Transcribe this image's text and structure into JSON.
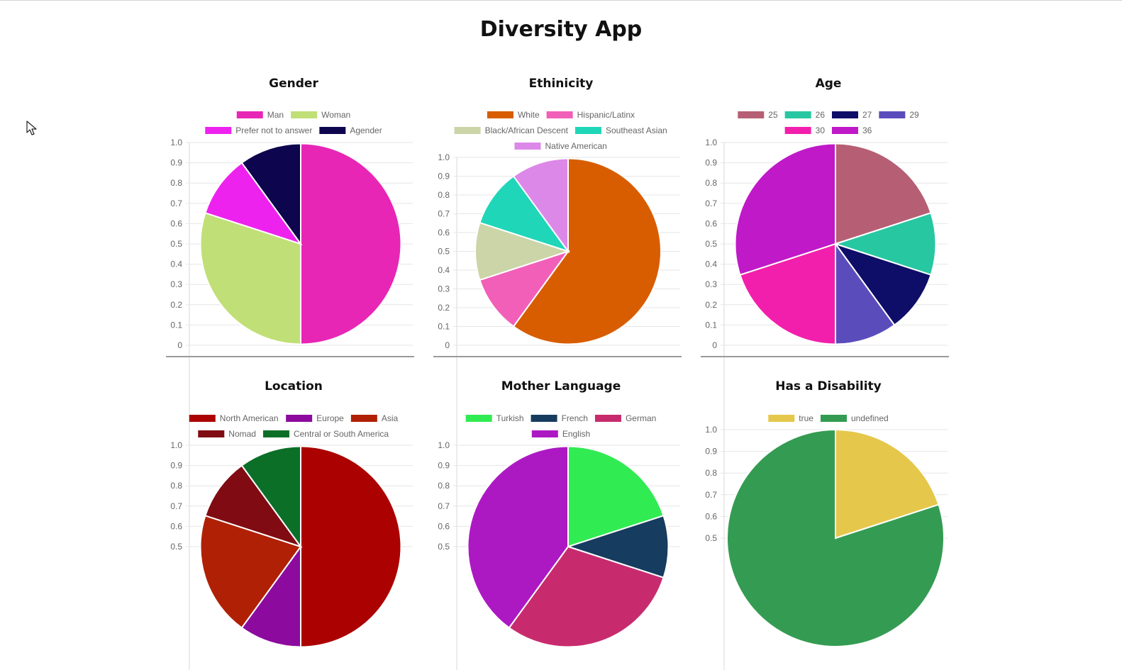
{
  "app": {
    "title": "Diversity App"
  },
  "chart_data": [
    {
      "type": "pie",
      "title": "Gender",
      "categories": [
        "Man",
        "Woman",
        "Prefer not to answer",
        "Agender"
      ],
      "values": [
        5,
        3,
        1,
        1
      ],
      "colors": [
        "#e826b6",
        "#c0df77",
        "#ee22ee",
        "#0d054d"
      ],
      "ylim": [
        0,
        1
      ],
      "yticks": [
        "0",
        "0.1",
        "0.2",
        "0.3",
        "0.4",
        "0.5",
        "0.6",
        "0.7",
        "0.8",
        "0.9",
        "1.0"
      ],
      "legend_rows": [
        [
          0,
          1
        ],
        [
          2,
          3
        ]
      ],
      "legend": "top"
    },
    {
      "type": "pie",
      "title": "Ethinicity",
      "categories": [
        "White",
        "Hispanic/Latinx",
        "Black/African Descent",
        "Southeast Asian",
        "Native American"
      ],
      "values": [
        6,
        1,
        1,
        1,
        1
      ],
      "colors": [
        "#d85d00",
        "#f25fb9",
        "#cbd5a8",
        "#1fd6b8",
        "#dc88e8"
      ],
      "ylim": [
        0,
        1
      ],
      "yticks": [
        "0",
        "0.1",
        "0.2",
        "0.3",
        "0.4",
        "0.5",
        "0.6",
        "0.7",
        "0.8",
        "0.9",
        "1.0"
      ],
      "legend_rows": [
        [
          0,
          1
        ],
        [
          2,
          3
        ],
        [
          4
        ]
      ],
      "legend": "top"
    },
    {
      "type": "pie",
      "title": "Age",
      "categories": [
        "25",
        "26",
        "27",
        "29",
        "30",
        "36"
      ],
      "values": [
        2,
        1,
        1,
        1,
        2,
        3
      ],
      "colors": [
        "#b65f74",
        "#27c7a1",
        "#0e0d68",
        "#5a4dbb",
        "#f21fac",
        "#c019c8"
      ],
      "ylim": [
        0,
        1
      ],
      "yticks": [
        "0",
        "0.1",
        "0.2",
        "0.3",
        "0.4",
        "0.5",
        "0.6",
        "0.7",
        "0.8",
        "0.9",
        "1.0"
      ],
      "legend_rows": [
        [
          0,
          1,
          2,
          3
        ],
        [
          4,
          5
        ]
      ],
      "legend": "top"
    },
    {
      "type": "pie",
      "title": "Location",
      "categories": [
        "North American",
        "Europe",
        "Asia",
        "Nomad",
        "Central or South America"
      ],
      "values": [
        5,
        1,
        2,
        1,
        1
      ],
      "colors": [
        "#ab0100",
        "#8c0b9e",
        "#b02005",
        "#800b12",
        "#0c6f27"
      ],
      "ylim": [
        0,
        1
      ],
      "yticks": [
        "0.5",
        "0.6",
        "0.7",
        "0.8",
        "0.9",
        "1.0"
      ],
      "legend_rows": [
        [
          0,
          1,
          2
        ],
        [
          3,
          4
        ]
      ],
      "legend": "top"
    },
    {
      "type": "pie",
      "title": "Mother Language",
      "categories": [
        "Turkish",
        "French",
        "German",
        "English"
      ],
      "values": [
        2,
        1,
        3,
        4
      ],
      "colors": [
        "#31eb53",
        "#163c5f",
        "#c72b6e",
        "#ac19c3"
      ],
      "ylim": [
        0,
        1
      ],
      "yticks": [
        "0.5",
        "0.6",
        "0.7",
        "0.8",
        "0.9",
        "1.0"
      ],
      "legend_rows": [
        [
          0,
          1,
          2
        ],
        [
          3
        ]
      ],
      "legend": "top"
    },
    {
      "type": "pie",
      "title": "Has a Disability",
      "categories": [
        "true",
        "undefined"
      ],
      "values": [
        2,
        8
      ],
      "colors": [
        "#e5c84b",
        "#339c52"
      ],
      "ylim": [
        0,
        1
      ],
      "yticks": [
        "0.5",
        "0.6",
        "0.7",
        "0.8",
        "0.9",
        "1.0"
      ],
      "legend_rows": [
        [
          0,
          1
        ]
      ],
      "legend": "top"
    }
  ]
}
